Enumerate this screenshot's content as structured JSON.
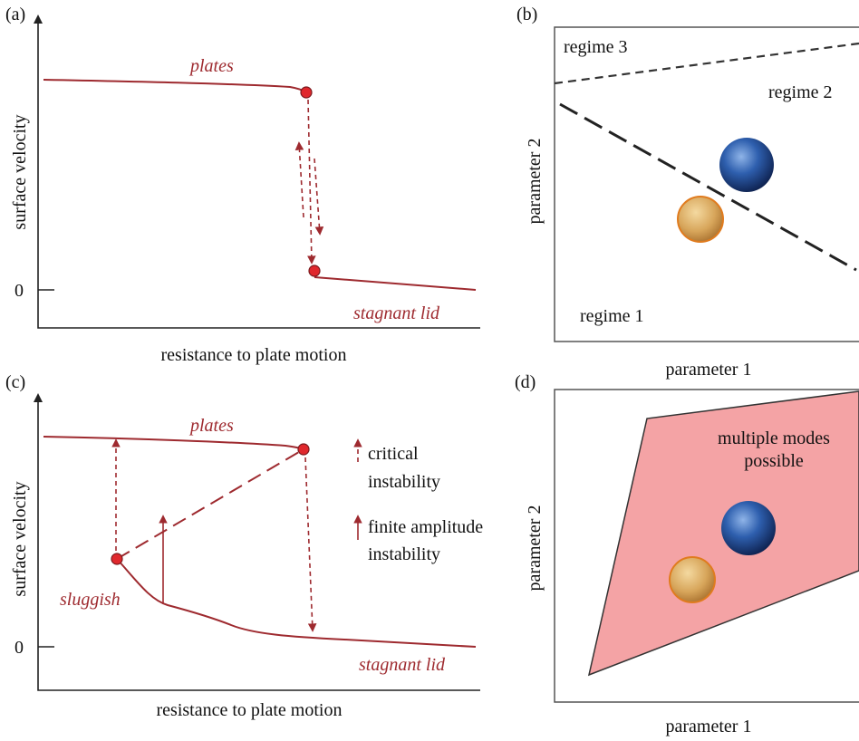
{
  "panels": [
    {
      "label": "(a)",
      "y_axis": "surface velocity",
      "x_axis": "resistance to plate motion",
      "zero_tick": "0",
      "annotations": [
        "plates",
        "stagnant lid"
      ]
    },
    {
      "label": "(b)",
      "y_axis": "parameter 2",
      "x_axis": "parameter 1",
      "regions": [
        "regime 3",
        "regime 2",
        "regime 1"
      ]
    },
    {
      "label": "(c)",
      "y_axis": "surface velocity",
      "x_axis": "resistance to plate motion",
      "zero_tick": "0",
      "annotations": [
        "plates",
        "sluggish",
        "stagnant lid"
      ],
      "legend": [
        "critical",
        "instability",
        "finite amplitude",
        "instability"
      ]
    },
    {
      "label": "(d)",
      "y_axis": "parameter 2",
      "x_axis": "parameter 1",
      "regions": [
        "multiple modes",
        "possible"
      ]
    }
  ]
}
